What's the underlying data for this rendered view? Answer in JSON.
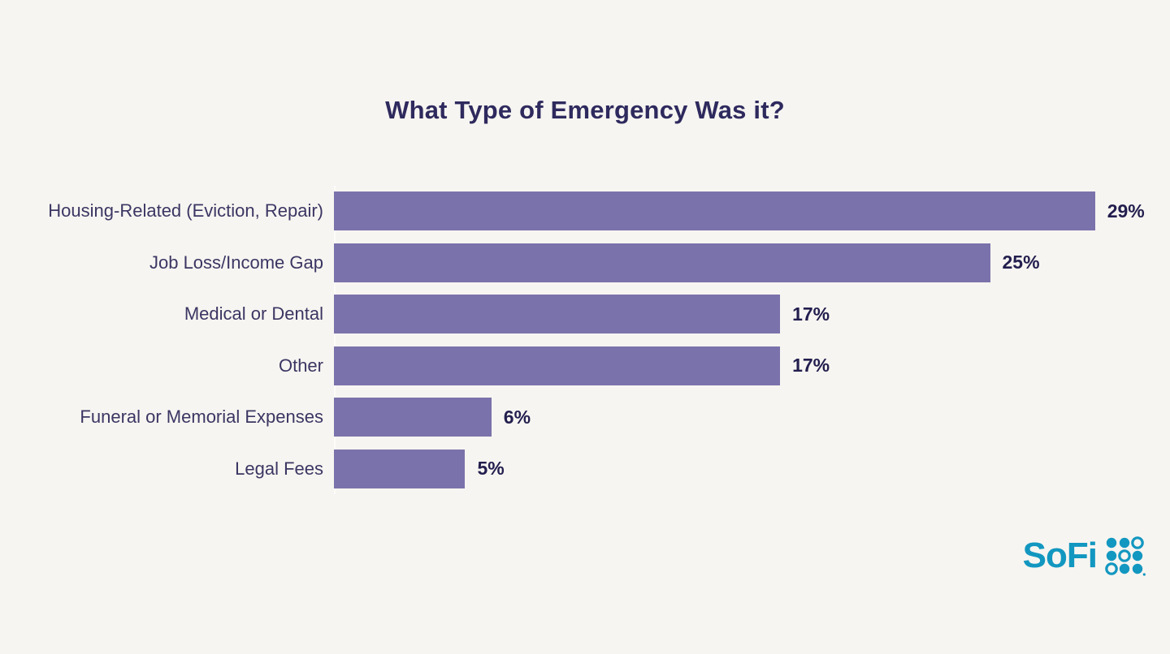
{
  "chart_data": {
    "type": "bar",
    "orientation": "horizontal",
    "title": "What Type of Emergency Was it?",
    "categories": [
      "Housing-Related (Eviction, Repair)",
      "Job Loss/Income Gap",
      "Medical or Dental",
      "Other",
      "Funeral or Memorial Expenses",
      "Legal Fees"
    ],
    "values": [
      29,
      25,
      17,
      17,
      6,
      5
    ],
    "value_labels": [
      "29%",
      "25%",
      "17%",
      "17%",
      "6%",
      "5%"
    ],
    "xlim": [
      0,
      30
    ],
    "grid": false,
    "legend": false,
    "bar_color": "#7a72ab",
    "title_color": "#2e2a5e",
    "category_label_color": "#3b3663",
    "value_label_color": "#221e4e",
    "background_color": "#f7f5f1"
  },
  "branding": {
    "logo_text": "SoFi",
    "logo_color": "#1297c0",
    "logo_icon": "sofi-dot-grid"
  }
}
